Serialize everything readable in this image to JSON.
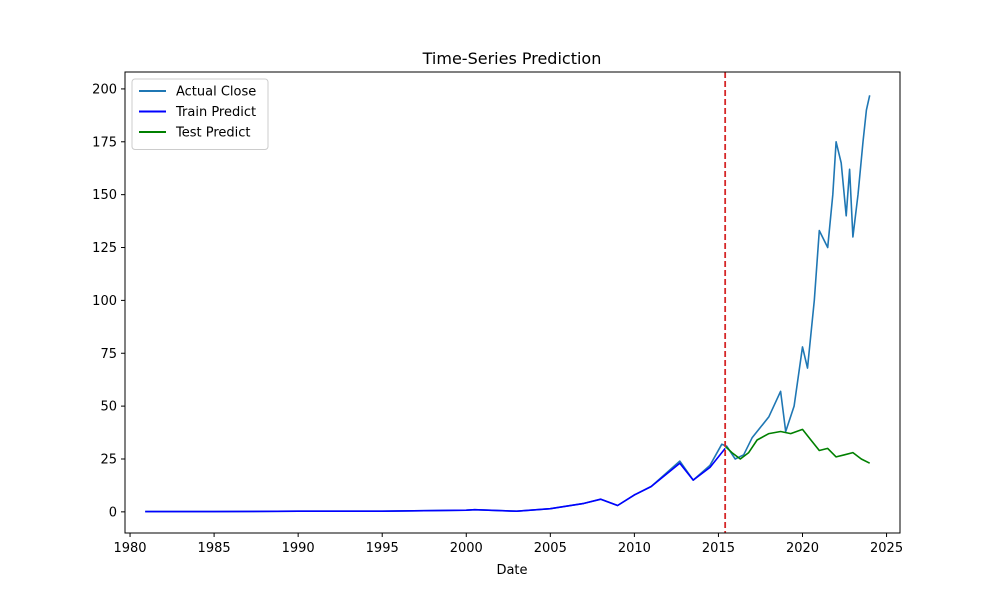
{
  "chart_data": {
    "type": "line",
    "title": "Time-Series Prediction",
    "xlabel": "Date",
    "ylabel": "",
    "xlim": [
      1979.7,
      2025.8
    ],
    "ylim": [
      -10,
      208
    ],
    "xticks": [
      1980,
      1985,
      1990,
      1995,
      2000,
      2005,
      2010,
      2015,
      2020,
      2025
    ],
    "yticks": [
      0,
      25,
      50,
      75,
      100,
      125,
      150,
      175,
      200
    ],
    "grid": false,
    "legend_position": "top-left",
    "split_line": {
      "x": 2015.4,
      "color": "#d62728",
      "style": "dashed"
    },
    "series": [
      {
        "name": "Actual Close",
        "color": "#1f77b4",
        "x": [
          1980.9,
          1985,
          1990,
          1995,
          2000,
          2000.5,
          2003,
          2005,
          2007,
          2008,
          2009,
          2010,
          2011,
          2012.7,
          2013.5,
          2014.5,
          2015.2,
          2015.5,
          2016,
          2016.5,
          2017,
          2017.5,
          2018,
          2018.7,
          2019,
          2019.5,
          2020,
          2020.3,
          2020.7,
          2021,
          2021.5,
          2021.8,
          2022,
          2022.3,
          2022.6,
          2022.8,
          2023,
          2023.3,
          2023.6,
          2023.8,
          2024
        ],
        "y": [
          0.1,
          0.1,
          0.3,
          0.3,
          0.8,
          1,
          0.3,
          1.5,
          4,
          6,
          3,
          8,
          12,
          24,
          15,
          22,
          32,
          31,
          25,
          27,
          35,
          40,
          45,
          57,
          38,
          50,
          78,
          68,
          100,
          133,
          125,
          150,
          175,
          165,
          140,
          162,
          130,
          150,
          175,
          190,
          197
        ]
      },
      {
        "name": "Train Predict",
        "color": "#0000ff",
        "x": [
          1980.9,
          1985,
          1990,
          1995,
          2000,
          2000.5,
          2003,
          2005,
          2007,
          2008,
          2009,
          2010,
          2011,
          2012.7,
          2013.5,
          2014.5,
          2015.4
        ],
        "y": [
          0.1,
          0.1,
          0.3,
          0.3,
          0.8,
          1,
          0.3,
          1.5,
          4,
          6,
          3,
          8,
          12,
          23,
          15,
          21,
          30
        ]
      },
      {
        "name": "Test Predict",
        "color": "#008000",
        "x": [
          2015.4,
          2015.8,
          2016.3,
          2016.8,
          2017.3,
          2018,
          2018.7,
          2019.3,
          2020,
          2020.5,
          2021,
          2021.5,
          2022,
          2022.5,
          2023,
          2023.5,
          2024
        ],
        "y": [
          31,
          28,
          25,
          28,
          34,
          37,
          38,
          37,
          39,
          34,
          29,
          30,
          26,
          27,
          28,
          25,
          23
        ]
      }
    ]
  }
}
